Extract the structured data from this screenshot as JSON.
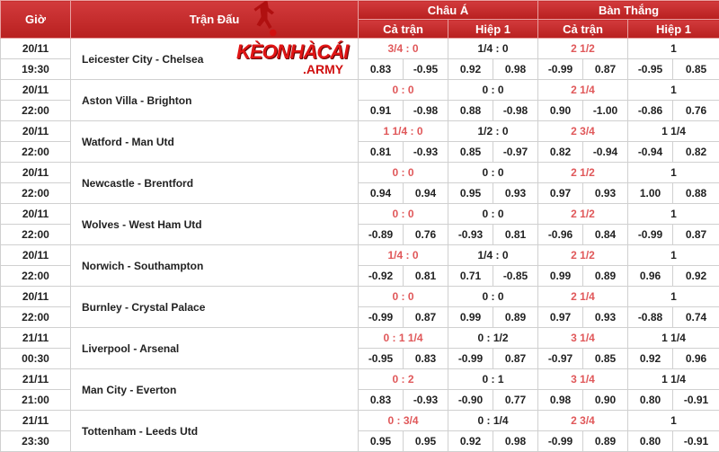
{
  "header": {
    "time": "Giờ",
    "match": "Trận Đấu",
    "asian": "Châu Á",
    "goals": "Bàn Thắng",
    "full": "Cả trận",
    "half": "Hiệp 1"
  },
  "logo": {
    "text": "KÈONHÀCÁI",
    ".army": ".ARMY"
  },
  "colors": {
    "header": "#c62828",
    "handicap_red": "#e0585a"
  },
  "matches": [
    {
      "date": "20/11",
      "time": "19:30",
      "teams": "Leicester City - Chelsea",
      "ah": "3/4 : 0",
      "ah_o": [
        "0.83",
        "-0.95"
      ],
      "ah1": "1/4 : 0",
      "ah1_o": [
        "0.92",
        "0.98"
      ],
      "ou": "2 1/2",
      "ou_o": [
        "-0.99",
        "0.87"
      ],
      "ou1": "1",
      "ou1_o": [
        "-0.95",
        "0.85"
      ]
    },
    {
      "date": "20/11",
      "time": "22:00",
      "teams": "Aston Villa - Brighton",
      "ah": "0 : 0",
      "ah_o": [
        "0.91",
        "-0.98"
      ],
      "ah1": "0 : 0",
      "ah1_o": [
        "0.88",
        "-0.98"
      ],
      "ou": "2 1/4",
      "ou_o": [
        "0.90",
        "-1.00"
      ],
      "ou1": "1",
      "ou1_o": [
        "-0.86",
        "0.76"
      ]
    },
    {
      "date": "20/11",
      "time": "22:00",
      "teams": "Watford - Man Utd",
      "ah": "1 1/4 : 0",
      "ah_o": [
        "0.81",
        "-0.93"
      ],
      "ah1": "1/2 : 0",
      "ah1_o": [
        "0.85",
        "-0.97"
      ],
      "ou": "2 3/4",
      "ou_o": [
        "0.82",
        "-0.94"
      ],
      "ou1": "1 1/4",
      "ou1_o": [
        "-0.94",
        "0.82"
      ]
    },
    {
      "date": "20/11",
      "time": "22:00",
      "teams": "Newcastle - Brentford",
      "ah": "0 : 0",
      "ah_o": [
        "0.94",
        "0.94"
      ],
      "ah1": "0 : 0",
      "ah1_o": [
        "0.95",
        "0.93"
      ],
      "ou": "2 1/2",
      "ou_o": [
        "0.97",
        "0.93"
      ],
      "ou1": "1",
      "ou1_o": [
        "1.00",
        "0.88"
      ]
    },
    {
      "date": "20/11",
      "time": "22:00",
      "teams": "Wolves - West Ham Utd",
      "ah": "0 : 0",
      "ah_o": [
        "-0.89",
        "0.76"
      ],
      "ah1": "0 : 0",
      "ah1_o": [
        "-0.93",
        "0.81"
      ],
      "ou": "2 1/2",
      "ou_o": [
        "-0.96",
        "0.84"
      ],
      "ou1": "1",
      "ou1_o": [
        "-0.99",
        "0.87"
      ]
    },
    {
      "date": "20/11",
      "time": "22:00",
      "teams": "Norwich - Southampton",
      "ah": "1/4 : 0",
      "ah_o": [
        "-0.92",
        "0.81"
      ],
      "ah1": "1/4 : 0",
      "ah1_o": [
        "0.71",
        "-0.85"
      ],
      "ou": "2 1/2",
      "ou_o": [
        "0.99",
        "0.89"
      ],
      "ou1": "1",
      "ou1_o": [
        "0.96",
        "0.92"
      ]
    },
    {
      "date": "20/11",
      "time": "22:00",
      "teams": "Burnley - Crystal Palace",
      "ah": "0 : 0",
      "ah_o": [
        "-0.99",
        "0.87"
      ],
      "ah1": "0 : 0",
      "ah1_o": [
        "0.99",
        "0.89"
      ],
      "ou": "2 1/4",
      "ou_o": [
        "0.97",
        "0.93"
      ],
      "ou1": "1",
      "ou1_o": [
        "-0.88",
        "0.74"
      ]
    },
    {
      "date": "21/11",
      "time": "00:30",
      "teams": "Liverpool - Arsenal",
      "ah": "0 : 1 1/4",
      "ah_o": [
        "-0.95",
        "0.83"
      ],
      "ah1": "0 : 1/2",
      "ah1_o": [
        "-0.99",
        "0.87"
      ],
      "ou": "3 1/4",
      "ou_o": [
        "-0.97",
        "0.85"
      ],
      "ou1": "1 1/4",
      "ou1_o": [
        "0.92",
        "0.96"
      ]
    },
    {
      "date": "21/11",
      "time": "21:00",
      "teams": "Man City - Everton",
      "ah": "0 : 2",
      "ah_o": [
        "0.83",
        "-0.93"
      ],
      "ah1": "0 : 1",
      "ah1_o": [
        "-0.90",
        "0.77"
      ],
      "ou": "3 1/4",
      "ou_o": [
        "0.98",
        "0.90"
      ],
      "ou1": "1 1/4",
      "ou1_o": [
        "0.80",
        "-0.91"
      ]
    },
    {
      "date": "21/11",
      "time": "23:30",
      "teams": "Tottenham - Leeds Utd",
      "ah": "0 : 3/4",
      "ah_o": [
        "0.95",
        "0.95"
      ],
      "ah1": "0 : 1/4",
      "ah1_o": [
        "0.92",
        "0.98"
      ],
      "ou": "2 3/4",
      "ou_o": [
        "-0.99",
        "0.89"
      ],
      "ou1": "1",
      "ou1_o": [
        "0.80",
        "-0.91"
      ]
    }
  ]
}
